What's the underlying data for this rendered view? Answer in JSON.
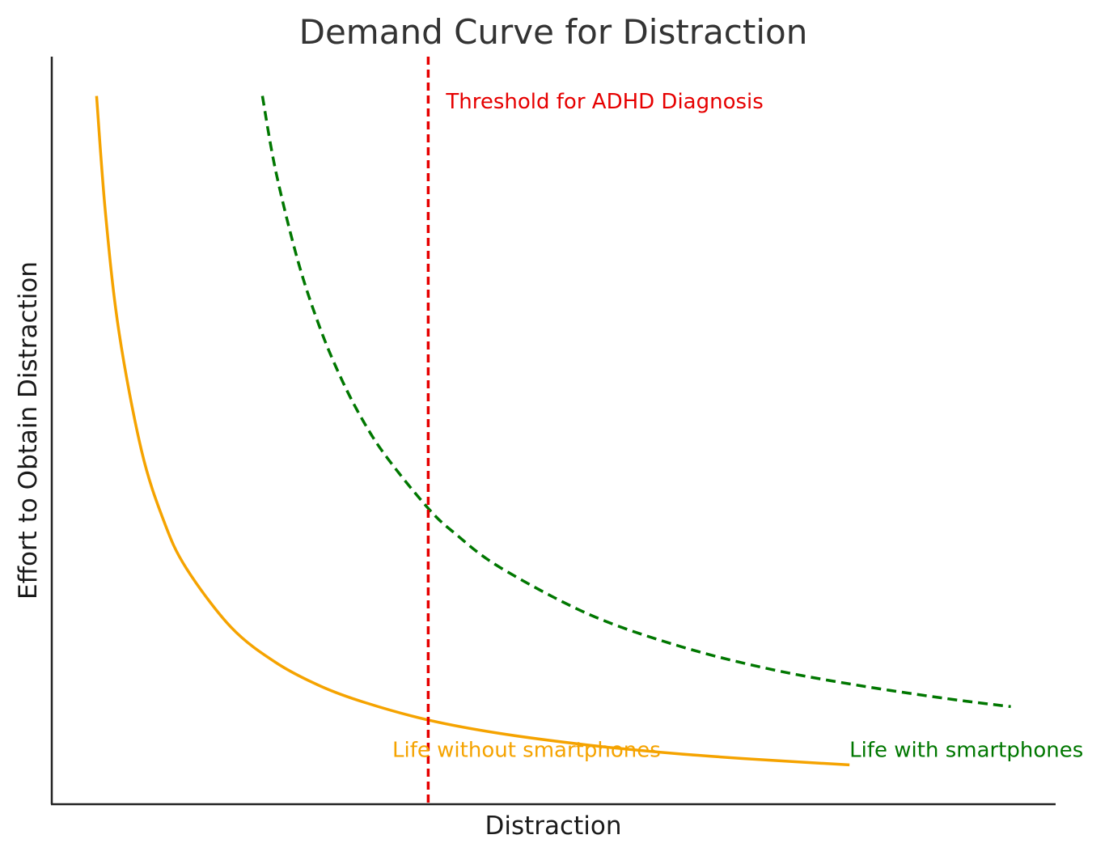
{
  "chart_data": {
    "type": "line",
    "title": "Demand Curve for Distraction",
    "xlabel": "Distraction",
    "ylabel": "Effort to Obtain Distraction",
    "xticks": [],
    "yticks": [],
    "grid": false,
    "legend": "none",
    "xlim": [
      0,
      11.2
    ],
    "ylim": [
      0,
      9.5
    ],
    "series": [
      {
        "name": "",
        "color": "#f5a300",
        "style": "solid",
        "points": [
          [
            0.5,
            9.0
          ],
          [
            0.6,
            7.5
          ],
          [
            0.75,
            6.0
          ],
          [
            1.0,
            4.5
          ],
          [
            1.25,
            3.6
          ],
          [
            1.5,
            3.0
          ],
          [
            2.0,
            2.25
          ],
          [
            2.5,
            1.8
          ],
          [
            3.0,
            1.5
          ],
          [
            3.5,
            1.29
          ],
          [
            4.2,
            1.07
          ],
          [
            5.0,
            0.9
          ],
          [
            6.0,
            0.75
          ],
          [
            7.0,
            0.64
          ],
          [
            8.0,
            0.56
          ],
          [
            8.9,
            0.5
          ]
        ]
      },
      {
        "name": "",
        "color": "#007700",
        "style": "dashed",
        "points": [
          [
            2.35,
            9.0
          ],
          [
            2.5,
            8.04
          ],
          [
            2.75,
            6.89
          ],
          [
            3.0,
            6.03
          ],
          [
            3.25,
            5.36
          ],
          [
            3.5,
            4.82
          ],
          [
            3.75,
            4.39
          ],
          [
            4.2,
            3.76
          ],
          [
            4.5,
            3.44
          ],
          [
            5.0,
            3.01
          ],
          [
            6.0,
            2.41
          ],
          [
            7.0,
            2.01
          ],
          [
            8.0,
            1.72
          ],
          [
            9.0,
            1.51
          ],
          [
            10.0,
            1.34
          ],
          [
            10.7,
            1.24
          ]
        ]
      }
    ],
    "threshold": {
      "x": 4.2,
      "color": "#e60000",
      "label": "Threshold for ADHD Diagnosis"
    },
    "annotations": [
      {
        "text": "Life without smartphones",
        "color": "#f5a300",
        "x": 3.8,
        "y": 0.6
      },
      {
        "text": "Life with smartphones",
        "color": "#007700",
        "x": 8.9,
        "y": 0.6
      }
    ]
  }
}
